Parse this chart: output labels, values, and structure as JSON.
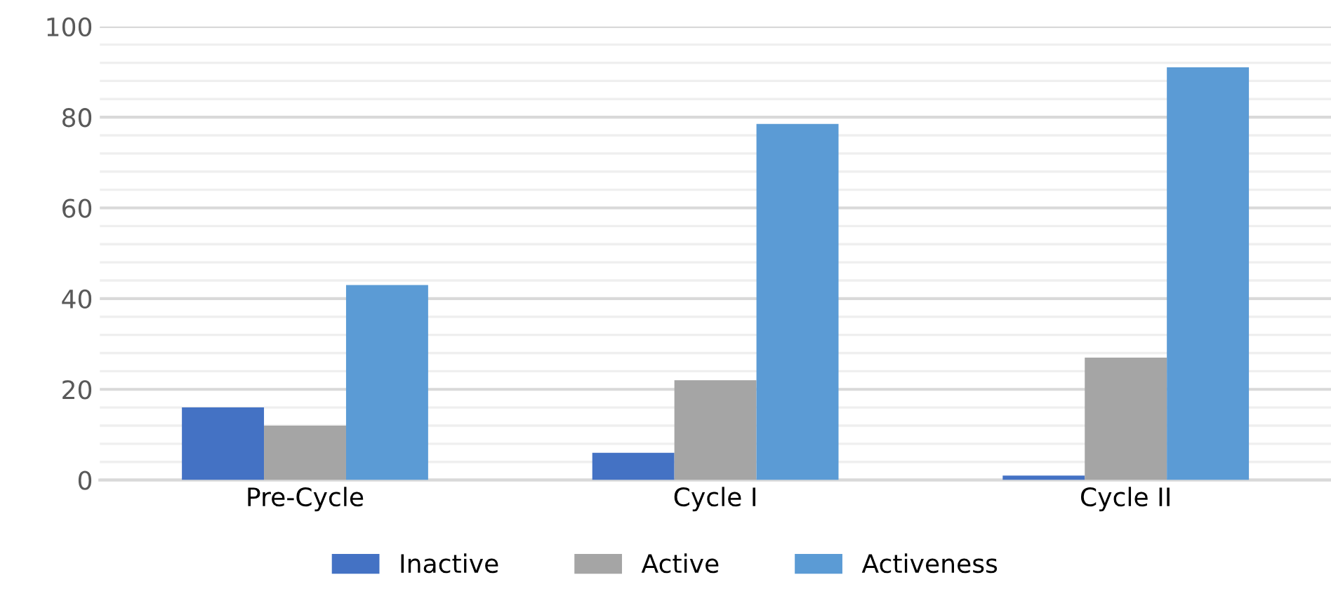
{
  "chart_data": {
    "type": "bar",
    "categories": [
      "Pre-Cycle",
      "Cycle I",
      "Cycle II"
    ],
    "series": [
      {
        "name": "Inactive",
        "color": "#4472c4",
        "values": [
          16,
          6,
          1
        ]
      },
      {
        "name": "Active",
        "color": "#a5a5a5",
        "values": [
          12,
          22,
          27
        ]
      },
      {
        "name": "Activeness",
        "color": "#5b9bd5",
        "values": [
          43,
          78.5,
          91
        ]
      }
    ],
    "ylim": [
      0,
      100
    ],
    "yticks": [
      0,
      {
        "value": 4,
        "label": null
      },
      {
        "value": 8,
        "label": null
      },
      {
        "value": 12,
        "label": null
      },
      {
        "value": 16,
        "label": null
      },
      20,
      {
        "value": 24,
        "label": null
      },
      {
        "value": 28,
        "label": null
      },
      {
        "value": 32,
        "label": null
      },
      {
        "value": 36,
        "label": null
      },
      40,
      {
        "value": 44,
        "label": null
      },
      {
        "value": 48,
        "label": null
      },
      {
        "value": 52,
        "label": null
      },
      {
        "value": 56,
        "label": null
      },
      60,
      {
        "value": 64,
        "label": null
      },
      {
        "value": 68,
        "label": null
      },
      {
        "value": 72,
        "label": null
      },
      {
        "value": 76,
        "label": null
      },
      80,
      {
        "value": 84,
        "label": null
      },
      {
        "value": 88,
        "label": null
      },
      {
        "value": 92,
        "label": null
      },
      {
        "value": 96,
        "label": null
      },
      100
    ],
    "grid": "y",
    "legend": "bottom"
  }
}
